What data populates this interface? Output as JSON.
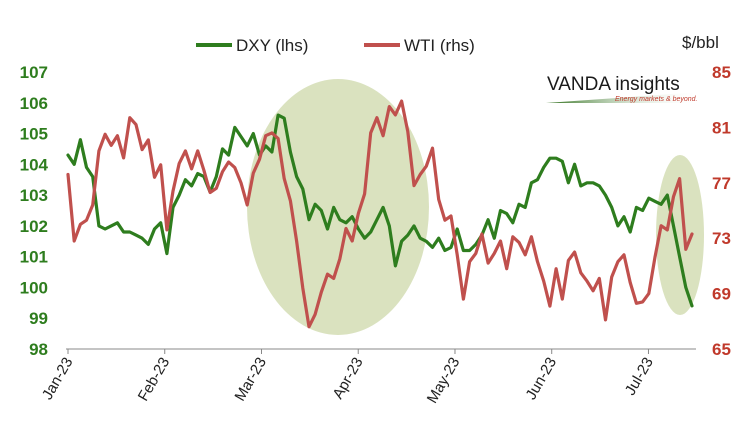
{
  "chart_data": {
    "type": "line",
    "title": "",
    "unit_right": "$/bbl",
    "brand": {
      "name": "VANDA insights",
      "tagline": "Energy markets & beyond."
    },
    "x_ticks": [
      "Jan-23",
      "Feb-23",
      "Mar-23",
      "Apr-23",
      "May-23",
      "Jun-23",
      "Jul-23"
    ],
    "y_left": {
      "ticks": [
        107,
        106,
        105,
        104,
        103,
        102,
        101,
        100,
        99,
        98
      ],
      "range": [
        98,
        107
      ]
    },
    "y_right": {
      "ticks": [
        85,
        81,
        77,
        73,
        69,
        65
      ],
      "range": [
        65,
        85
      ]
    },
    "grid": false,
    "legend_position": "top",
    "colors": {
      "dxy": "#2e7d1e",
      "wti": "#c0504d",
      "highlight": "#d3ddb4"
    },
    "series": [
      {
        "name": "DXY (lhs)",
        "axis": "left",
        "values": [
          104.3,
          104.0,
          104.8,
          103.9,
          103.6,
          102.0,
          101.9,
          102.0,
          102.1,
          101.8,
          101.8,
          101.7,
          101.6,
          101.4,
          101.9,
          102.1,
          101.1,
          102.6,
          103.0,
          103.5,
          103.3,
          103.7,
          103.6,
          103.1,
          103.6,
          104.5,
          104.3,
          105.2,
          104.9,
          104.6,
          105.0,
          104.3,
          104.6,
          104.4,
          105.6,
          105.5,
          104.4,
          103.6,
          103.2,
          102.2,
          102.7,
          102.5,
          101.9,
          102.6,
          102.2,
          102.1,
          102.3,
          101.9,
          101.6,
          101.8,
          102.2,
          102.6,
          102.0,
          100.7,
          101.5,
          101.7,
          102.0,
          101.6,
          101.5,
          101.3,
          101.6,
          101.2,
          101.3,
          101.9,
          101.2,
          101.2,
          101.4,
          101.7,
          102.2,
          101.6,
          102.5,
          102.4,
          102.1,
          102.7,
          102.6,
          103.4,
          103.5,
          103.9,
          104.2,
          104.2,
          104.1,
          103.4,
          104.0,
          103.3,
          103.4,
          103.4,
          103.3,
          103.0,
          102.6,
          102.0,
          102.3,
          101.8,
          102.6,
          102.5,
          102.9,
          102.8,
          102.7,
          103.0,
          102.0,
          101.0,
          100.0,
          99.4
        ]
      },
      {
        "name": "WTI (rhs)",
        "axis": "right",
        "values": [
          77.6,
          72.8,
          74.0,
          74.3,
          75.4,
          79.3,
          80.5,
          79.7,
          80.4,
          78.8,
          81.7,
          81.2,
          79.4,
          80.1,
          77.4,
          78.3,
          73.6,
          76.4,
          78.4,
          79.3,
          78.0,
          79.3,
          77.9,
          76.3,
          76.6,
          77.8,
          78.5,
          78.1,
          77.0,
          75.4,
          77.7,
          78.7,
          80.4,
          80.6,
          80.2,
          77.3,
          75.7,
          72.8,
          69.4,
          66.6,
          67.5,
          69.1,
          70.4,
          70.1,
          71.5,
          73.7,
          72.8,
          74.8,
          76.2,
          80.6,
          81.7,
          80.4,
          82.5,
          81.9,
          82.9,
          80.7,
          76.8,
          77.6,
          78.2,
          79.5,
          75.8,
          74.3,
          74.6,
          71.8,
          68.6,
          71.3,
          71.9,
          73.3,
          71.2,
          71.9,
          72.8,
          70.8,
          73.1,
          72.7,
          71.8,
          73.1,
          71.3,
          69.9,
          68.1,
          70.8,
          68.6,
          71.4,
          72.0,
          70.5,
          69.9,
          69.2,
          70.1,
          67.1,
          70.2,
          71.3,
          71.8,
          69.8,
          68.3,
          68.4,
          69.0,
          71.6,
          73.9,
          73.6,
          76.0,
          77.3,
          72.2,
          73.3
        ]
      }
    ]
  }
}
